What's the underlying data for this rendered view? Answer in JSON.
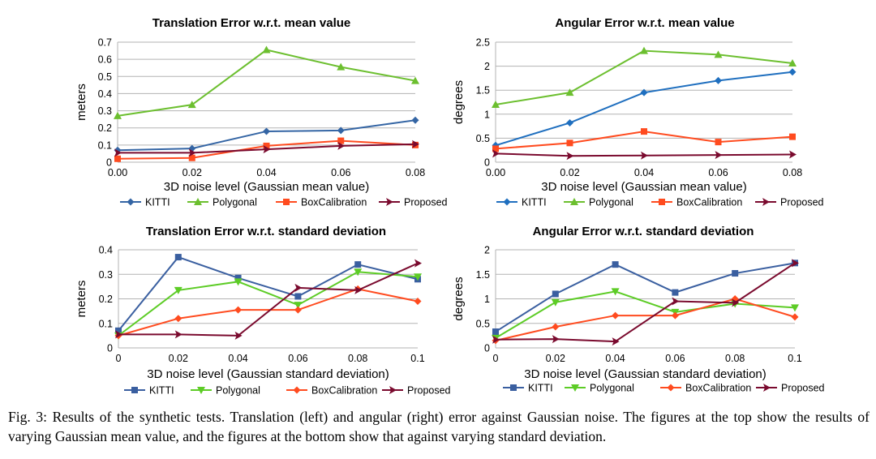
{
  "chart_data": [
    {
      "type": "line",
      "title": "Translation Error w.r.t. mean value",
      "xlabel": "3D noise level (Gaussian mean value)",
      "ylabel": "meters",
      "x": [
        0,
        0.02,
        0.04,
        0.06,
        0.08
      ],
      "x_tick_labels": [
        "0.00",
        "0.02",
        "0.04",
        "0.06",
        "0.08"
      ],
      "ylim": [
        0,
        0.7
      ],
      "y_ticks": [
        0,
        0.1,
        0.2,
        0.3,
        0.4,
        0.5,
        0.6,
        0.7
      ],
      "y_tick_labels": [
        "0",
        "0.1",
        "0.2",
        "0.3",
        "0.4",
        "0.5",
        "0.6",
        "0.7"
      ],
      "grid": "horizontal",
      "legend": "bottom",
      "series": [
        {
          "name": "KITTI",
          "values": [
            0.07,
            0.08,
            0.18,
            0.185,
            0.245
          ],
          "color": "#3465a4",
          "marker": "diamond"
        },
        {
          "name": "Polygonal",
          "values": [
            0.27,
            0.335,
            0.655,
            0.555,
            0.475
          ],
          "color": "#6cbf2f",
          "marker": "triangle-up"
        },
        {
          "name": "BoxCalibration",
          "values": [
            0.02,
            0.025,
            0.095,
            0.125,
            0.1
          ],
          "color": "#ff4b1f",
          "marker": "square"
        },
        {
          "name": "Proposed",
          "values": [
            0.055,
            0.055,
            0.075,
            0.095,
            0.105
          ],
          "color": "#7a0a2e",
          "marker": "arrow-right"
        }
      ]
    },
    {
      "type": "line",
      "title": "Angular Error w.r.t. mean value",
      "xlabel": "3D noise level (Gaussian mean value)",
      "ylabel": "degrees",
      "x": [
        0,
        0.02,
        0.04,
        0.06,
        0.08
      ],
      "x_tick_labels": [
        "0.00",
        "0.02",
        "0.04",
        "0.06",
        "0.08"
      ],
      "ylim": [
        0,
        2.5
      ],
      "y_ticks": [
        0,
        0.5,
        1,
        1.5,
        2,
        2.5
      ],
      "y_tick_labels": [
        "0",
        "0.5",
        "1",
        "1.5",
        "2",
        "2.5"
      ],
      "grid": "horizontal",
      "legend": "bottom",
      "series": [
        {
          "name": "KITTI",
          "values": [
            0.35,
            0.82,
            1.45,
            1.7,
            1.88
          ],
          "color": "#1f6fbf",
          "marker": "diamond"
        },
        {
          "name": "Polygonal",
          "values": [
            1.2,
            1.45,
            2.32,
            2.24,
            2.06
          ],
          "color": "#6cbf2f",
          "marker": "triangle-up"
        },
        {
          "name": "BoxCalibration",
          "values": [
            0.28,
            0.4,
            0.64,
            0.42,
            0.53
          ],
          "color": "#ff4b1f",
          "marker": "square"
        },
        {
          "name": "Proposed",
          "values": [
            0.18,
            0.13,
            0.14,
            0.15,
            0.16
          ],
          "color": "#7a0a2e",
          "marker": "arrow-right"
        }
      ]
    },
    {
      "type": "line",
      "title": "Translation Error w.r.t. standard deviation",
      "xlabel": "3D noise level (Gaussian standard deviation)",
      "ylabel": "meters",
      "x": [
        0,
        0.02,
        0.04,
        0.06,
        0.08,
        0.1
      ],
      "x_tick_labels": [
        "0",
        "0.02",
        "0.04",
        "0.06",
        "0.08",
        "0.1"
      ],
      "ylim": [
        0,
        0.4
      ],
      "y_ticks": [
        0,
        0.1,
        0.2,
        0.3,
        0.4
      ],
      "y_tick_labels": [
        "0",
        "0.1",
        "0.2",
        "0.3",
        "0.4"
      ],
      "grid": "horizontal",
      "legend": "bottom",
      "series": [
        {
          "name": "KITTI",
          "values": [
            0.07,
            0.37,
            0.285,
            0.21,
            0.34,
            0.28
          ],
          "color": "#3a5fa0",
          "marker": "square"
        },
        {
          "name": "Polygonal",
          "values": [
            0.05,
            0.235,
            0.27,
            0.175,
            0.31,
            0.29
          ],
          "color": "#5dcc26",
          "marker": "triangle-down"
        },
        {
          "name": "BoxCalibration",
          "values": [
            0.05,
            0.12,
            0.155,
            0.155,
            0.24,
            0.19
          ],
          "color": "#ff4b1f",
          "marker": "diamond"
        },
        {
          "name": "Proposed",
          "values": [
            0.055,
            0.055,
            0.05,
            0.245,
            0.235,
            0.345
          ],
          "color": "#7a0a2e",
          "marker": "arrow-right"
        }
      ]
    },
    {
      "type": "line",
      "title": "Angular Error w.r.t. standard deviation",
      "xlabel": "3D noise level (Gaussian standard deviation)",
      "ylabel": "degrees",
      "x": [
        0,
        0.02,
        0.04,
        0.06,
        0.08,
        0.1
      ],
      "x_tick_labels": [
        "0",
        "0.02",
        "0.04",
        "0.06",
        "0.08",
        "0.1"
      ],
      "ylim": [
        0,
        2
      ],
      "y_ticks": [
        0,
        0.5,
        1,
        1.5,
        2
      ],
      "y_tick_labels": [
        "0",
        "0.5",
        "1",
        "1.5",
        "2"
      ],
      "grid": "horizontal",
      "legend": "bottom",
      "series": [
        {
          "name": "KITTI",
          "values": [
            0.33,
            1.1,
            1.7,
            1.13,
            1.52,
            1.73
          ],
          "color": "#3a5fa0",
          "marker": "square"
        },
        {
          "name": "Polygonal",
          "values": [
            0.2,
            0.93,
            1.15,
            0.73,
            0.9,
            0.82
          ],
          "color": "#5dcc26",
          "marker": "triangle-down"
        },
        {
          "name": "BoxCalibration",
          "values": [
            0.15,
            0.43,
            0.66,
            0.66,
            1.0,
            0.63
          ],
          "color": "#ff4b1f",
          "marker": "diamond"
        },
        {
          "name": "Proposed",
          "values": [
            0.17,
            0.18,
            0.13,
            0.95,
            0.92,
            1.73
          ],
          "color": "#7a0a2e",
          "marker": "arrow-right"
        }
      ]
    }
  ],
  "caption": "Fig. 3: Results of the synthetic tests. Translation (left) and angular (right) error against Gaussian noise. The figures at the top show the results of varying Gaussian mean value, and the figures at the bottom show that against varying standard deviation."
}
